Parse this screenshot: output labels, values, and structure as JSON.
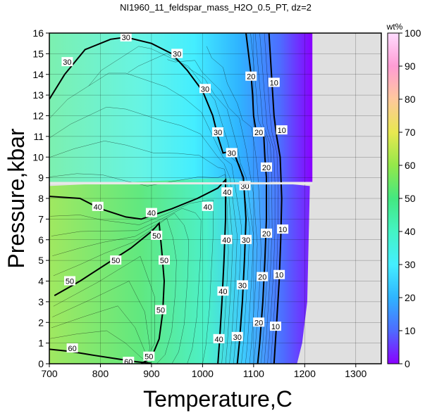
{
  "chart_data": {
    "type": "contour",
    "title": "NI1960_11_feldspar_mass_H2O_0.5_PT, dz=2",
    "xlabel": "Temperature,C",
    "ylabel": "Pressure,kbar",
    "xlim": [
      700,
      1350
    ],
    "ylim": [
      0,
      16
    ],
    "xticks": [
      700,
      800,
      900,
      1000,
      1100,
      1200,
      1300
    ],
    "yticks": [
      0,
      1,
      2,
      3,
      4,
      5,
      6,
      7,
      8,
      9,
      10,
      11,
      12,
      13,
      14,
      15,
      16
    ],
    "grid": true,
    "colorbar": {
      "label": "wt%",
      "range": [
        0,
        100
      ],
      "ticks": [
        0,
        10,
        20,
        30,
        40,
        50,
        60,
        70,
        80,
        90,
        100
      ]
    },
    "contour_interval": 2,
    "labeled_contours": [
      {
        "value": 60,
        "points": [
          [
            700,
            0.7
          ],
          [
            740,
            0.6
          ],
          [
            790,
            0.4
          ],
          [
            830,
            0.25
          ],
          [
            870,
            0.1
          ],
          [
            900,
            0.02
          ]
        ],
        "labels": [
          [
            745,
            0.75
          ],
          [
            855,
            0.1
          ]
        ]
      },
      {
        "value": 50,
        "points": [
          [
            710,
            3.3
          ],
          [
            760,
            4.0
          ],
          [
            810,
            4.8
          ],
          [
            860,
            5.6
          ],
          [
            900,
            6.4
          ],
          [
            915,
            6.8
          ],
          [
            920,
            5.5
          ],
          [
            925,
            4.0
          ],
          [
            922,
            2.5
          ],
          [
            915,
            1.2
          ],
          [
            900,
            0.3
          ],
          [
            880,
            0.0
          ]
        ],
        "labels": [
          [
            740,
            4.0
          ],
          [
            830,
            5.0
          ],
          [
            910,
            6.2
          ],
          [
            925,
            5.0
          ],
          [
            918,
            2.6
          ],
          [
            895,
            0.35
          ]
        ]
      },
      {
        "value": 40,
        "points": [
          [
            700,
            8.1
          ],
          [
            760,
            8.0
          ],
          [
            800,
            7.5
          ],
          [
            850,
            7.1
          ],
          [
            880,
            7.0
          ],
          [
            940,
            7.5
          ],
          [
            990,
            8.0
          ],
          [
            1030,
            8.5
          ],
          [
            1045,
            8.9
          ],
          [
            1045,
            7.0
          ],
          [
            1042,
            5.0
          ],
          [
            1038,
            3.0
          ],
          [
            1033,
            1.0
          ],
          [
            1030,
            0.0
          ]
        ],
        "labels": [
          [
            795,
            7.6
          ],
          [
            900,
            7.3
          ],
          [
            1010,
            7.6
          ],
          [
            1048,
            8.3
          ],
          [
            1047,
            6.0
          ],
          [
            1040,
            3.5
          ],
          [
            1032,
            1.2
          ]
        ]
      },
      {
        "value": 30,
        "points": [
          [
            700,
            12.8
          ],
          [
            730,
            14.0
          ],
          [
            770,
            15.2
          ],
          [
            820,
            15.7
          ],
          [
            850,
            15.8
          ],
          [
            900,
            15.5
          ],
          [
            940,
            15.0
          ],
          [
            970,
            14.2
          ],
          [
            1000,
            13.2
          ],
          [
            1020,
            12.0
          ],
          [
            1030,
            11.0
          ],
          [
            1040,
            10.2
          ],
          [
            1060,
            10.3
          ],
          [
            1080,
            9.0
          ],
          [
            1085,
            7.0
          ],
          [
            1082,
            5.0
          ],
          [
            1078,
            3.0
          ],
          [
            1072,
            1.0
          ],
          [
            1068,
            0.0
          ]
        ],
        "labels": [
          [
            735,
            14.6
          ],
          [
            850,
            15.8
          ],
          [
            950,
            15.0
          ],
          [
            1005,
            13.3
          ],
          [
            1030,
            11.2
          ],
          [
            1057,
            10.2
          ],
          [
            1083,
            8.6
          ],
          [
            1085,
            6.0
          ],
          [
            1078,
            3.8
          ],
          [
            1068,
            1.3
          ]
        ]
      },
      {
        "value": 20,
        "points": [
          [
            1085,
            16.0
          ],
          [
            1090,
            15.0
          ],
          [
            1095,
            14.0
          ],
          [
            1098,
            13.0
          ],
          [
            1100,
            12.0
          ],
          [
            1105,
            11.2
          ],
          [
            1120,
            11.0
          ],
          [
            1122,
            10.0
          ],
          [
            1125,
            9.0
          ],
          [
            1125,
            7.0
          ],
          [
            1122,
            5.0
          ],
          [
            1118,
            3.0
          ],
          [
            1112,
            1.0
          ],
          [
            1108,
            0.0
          ]
        ],
        "labels": [
          [
            1095,
            13.9
          ],
          [
            1110,
            11.2
          ],
          [
            1125,
            9.5
          ],
          [
            1125,
            6.3
          ],
          [
            1117,
            4.2
          ],
          [
            1110,
            2.0
          ]
        ]
      },
      {
        "value": 10,
        "points": [
          [
            1130,
            16.0
          ],
          [
            1135,
            14.0
          ],
          [
            1140,
            12.0
          ],
          [
            1145,
            11.0
          ],
          [
            1152,
            10.0
          ],
          [
            1155,
            8.0
          ],
          [
            1153,
            6.0
          ],
          [
            1150,
            4.0
          ],
          [
            1145,
            2.0
          ],
          [
            1140,
            0.0
          ]
        ],
        "labels": [
          [
            1140,
            13.6
          ],
          [
            1155,
            11.3
          ],
          [
            1157,
            6.5
          ],
          [
            1150,
            4.3
          ],
          [
            1143,
            1.8
          ]
        ]
      }
    ]
  }
}
